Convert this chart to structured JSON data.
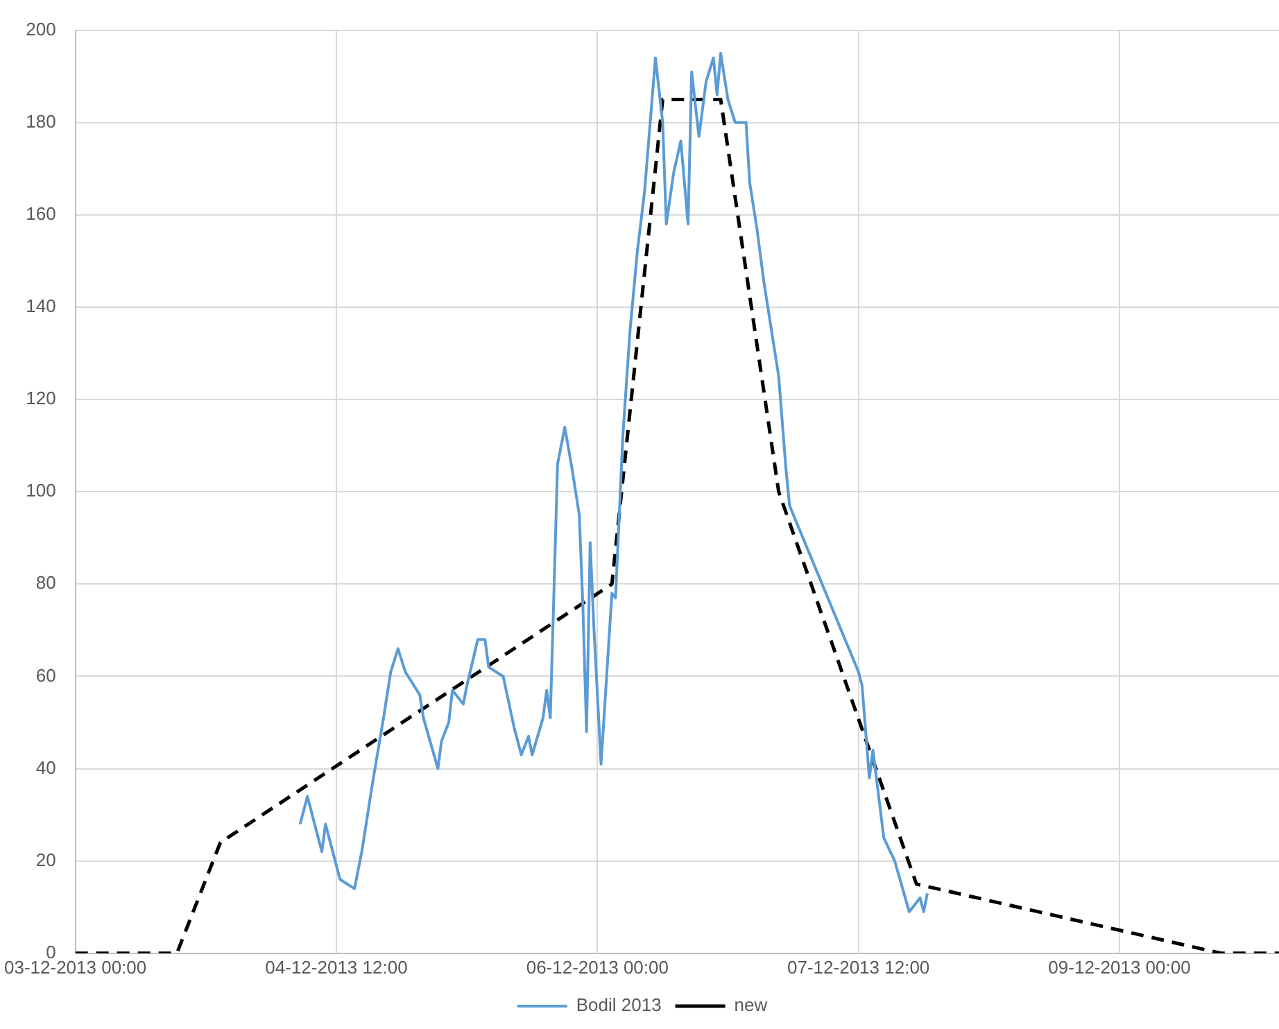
{
  "chart_data": {
    "type": "line",
    "grid": true,
    "legend": "bottom",
    "marker": "none",
    "xlim": [
      "2013-12-03T00:00",
      "2013-12-09T22:00"
    ],
    "xticks": [
      {
        "value": "2013-12-03T00:00",
        "label": "03-12-2013 00:00"
      },
      {
        "value": "2013-12-04T12:00",
        "label": "04-12-2013 12:00"
      },
      {
        "value": "2013-12-06T00:00",
        "label": "06-12-2013 00:00"
      },
      {
        "value": "2013-12-07T12:00",
        "label": "07-12-2013 12:00"
      },
      {
        "value": "2013-12-09T00:00",
        "label": "09-12-2013 00:00"
      }
    ],
    "ylim": [
      0,
      200
    ],
    "yticks": [
      0,
      20,
      40,
      60,
      80,
      100,
      120,
      140,
      160,
      180,
      200
    ],
    "series": [
      {
        "name": "Bodil 2013",
        "color": "#5b9bd5",
        "line_style": "solid",
        "x": [
          "2013-12-04T07:00",
          "2013-12-04T08:00",
          "2013-12-04T10:00",
          "2013-12-04T10:30",
          "2013-12-04T12:30",
          "2013-12-04T14:30",
          "2013-12-04T15:30",
          "2013-12-04T17:00",
          "2013-12-04T18:30",
          "2013-12-04T19:30",
          "2013-12-04T20:30",
          "2013-12-04T21:30",
          "2013-12-04T23:30",
          "2013-12-05T00:00",
          "2013-12-05T02:00",
          "2013-12-05T02:30",
          "2013-12-05T03:30",
          "2013-12-05T04:00",
          "2013-12-05T05:30",
          "2013-12-05T06:00",
          "2013-12-05T07:30",
          "2013-12-05T08:30",
          "2013-12-05T09:00",
          "2013-12-05T11:00",
          "2013-12-05T12:30",
          "2013-12-05T13:30",
          "2013-12-05T14:30",
          "2013-12-05T15:00",
          "2013-12-05T16:30",
          "2013-12-05T17:00",
          "2013-12-05T17:30",
          "2013-12-05T18:00",
          "2013-12-05T18:30",
          "2013-12-05T19:30",
          "2013-12-05T20:30",
          "2013-12-05T21:30",
          "2013-12-05T22:00",
          "2013-12-05T22:30",
          "2013-12-05T23:00",
          "2013-12-05T23:30",
          "2013-12-06T00:30",
          "2013-12-06T02:00",
          "2013-12-06T02:30",
          "2013-12-06T03:30",
          "2013-12-06T04:30",
          "2013-12-06T05:30",
          "2013-12-06T06:30",
          "2013-12-06T08:00",
          "2013-12-06T09:00",
          "2013-12-06T09:30",
          "2013-12-06T10:30",
          "2013-12-06T11:30",
          "2013-12-06T12:30",
          "2013-12-06T13:00",
          "2013-12-06T14:00",
          "2013-12-06T15:00",
          "2013-12-06T16:00",
          "2013-12-06T16:30",
          "2013-12-06T17:00",
          "2013-12-06T18:00",
          "2013-12-06T19:00",
          "2013-12-06T20:30",
          "2013-12-06T21:00",
          "2013-12-06T22:00",
          "2013-12-06T23:00",
          "2013-12-07T00:00",
          "2013-12-07T01:00",
          "2013-12-07T02:00",
          "2013-12-07T02:30",
          "2013-12-07T12:00",
          "2013-12-07T12:30",
          "2013-12-07T13:30",
          "2013-12-07T14:00",
          "2013-12-07T15:30",
          "2013-12-07T17:00",
          "2013-12-07T19:00",
          "2013-12-07T20:30",
          "2013-12-07T21:00",
          "2013-12-07T21:30"
        ],
        "values": [
          28,
          34,
          22,
          28,
          16,
          14,
          22,
          37,
          51,
          61,
          66,
          61,
          56,
          51,
          40,
          46,
          50,
          57,
          54,
          58,
          68,
          68,
          62,
          60,
          49,
          43,
          47,
          43,
          51,
          57,
          51,
          78,
          106,
          114,
          105,
          95,
          75,
          48,
          89,
          71,
          41,
          78,
          77,
          112,
          135,
          152,
          165,
          194,
          180,
          158,
          169,
          176,
          158,
          191,
          177,
          189,
          194,
          186,
          195,
          185,
          180,
          180,
          167,
          157,
          145,
          135,
          125,
          105,
          97,
          61,
          58,
          38,
          44,
          25,
          20,
          9,
          12,
          9,
          13
        ]
      },
      {
        "name": "new",
        "color": "#000000",
        "line_style": "dashed",
        "x": [
          "2013-12-03T00:00",
          "2013-12-03T14:00",
          "2013-12-03T20:00",
          "2013-12-06T02:00",
          "2013-12-06T09:00",
          "2013-12-06T17:00",
          "2013-12-07T01:00",
          "2013-12-07T20:00",
          "2013-12-09T14:00",
          "2013-12-09T22:00"
        ],
        "values": [
          0,
          0,
          24,
          80,
          185,
          185,
          100,
          15,
          0,
          0
        ]
      }
    ]
  }
}
